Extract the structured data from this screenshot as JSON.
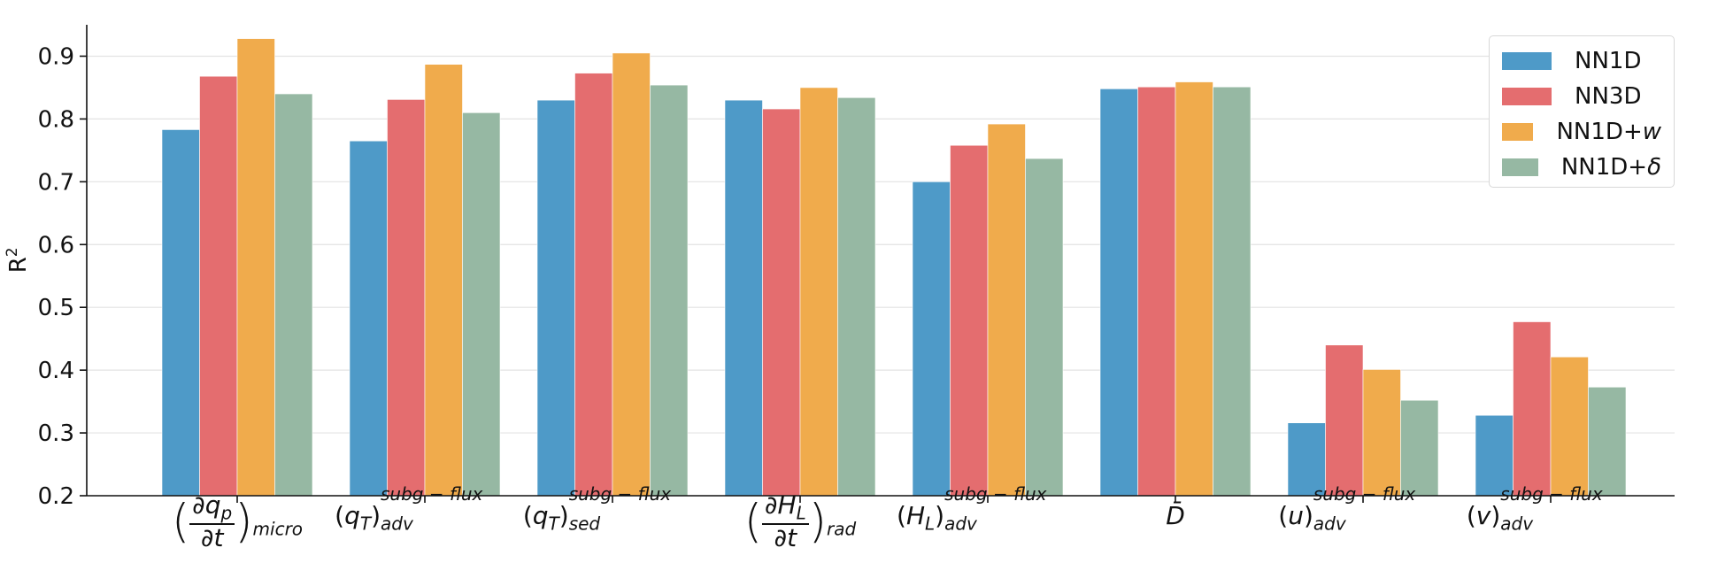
{
  "chart_data": {
    "type": "bar",
    "ylabel": "R",
    "ylabel_sup": "2",
    "ylim": [
      0.2,
      0.95
    ],
    "yticks": [
      "0.2",
      "0.3",
      "0.4",
      "0.5",
      "0.6",
      "0.7",
      "0.8",
      "0.9"
    ],
    "grid": "horizontal",
    "legend_position": "top-right",
    "categories": [
      "(∂q_p/∂t)_micro",
      "(q_T)_adv^(subg−flux)",
      "(q_T)_sed^(subg−flux)",
      "(∂H_L/∂t)_rad",
      "(H_L)_adv^(subg−flux)",
      "D̄",
      "(u)_adv^(subg−flux)",
      "(v)_adv^(subg−flux)"
    ],
    "series": [
      {
        "name": "NN1D",
        "color": "#4e9ac8",
        "values": [
          0.783,
          0.765,
          0.83,
          0.83,
          0.7,
          0.848,
          0.316,
          0.328
        ]
      },
      {
        "name": "NN3D",
        "color": "#e46d6f",
        "values": [
          0.868,
          0.831,
          0.873,
          0.816,
          0.758,
          0.851,
          0.44,
          0.477
        ]
      },
      {
        "name": "NN1D+w",
        "color": "#f0ab4c",
        "values": [
          0.928,
          0.887,
          0.905,
          0.85,
          0.792,
          0.859,
          0.401,
          0.421
        ]
      },
      {
        "name": "NN1D+δ",
        "color": "#96b8a3",
        "values": [
          0.84,
          0.81,
          0.854,
          0.834,
          0.737,
          0.851,
          0.352,
          0.373
        ]
      }
    ]
  },
  "labels": {
    "c0": {
      "d": "∂",
      "q": "q",
      "p": "p",
      "den": "∂t",
      "sub": "micro"
    },
    "c1": {
      "v": "q",
      "vs": "T",
      "sup": "subg − flux",
      "sub": "adv"
    },
    "c2": {
      "v": "q",
      "vs": "T",
      "sup": "subg − flux",
      "sub": "sed"
    },
    "c3": {
      "d": "∂",
      "h": "H",
      "hs": "L",
      "den": "∂t",
      "sub": "rad"
    },
    "c4": {
      "v": "H",
      "vs": "L",
      "sup": "subg − flux",
      "sub": "adv"
    },
    "c5": {
      "v": "D̄"
    },
    "c6": {
      "v": "u",
      "sup": "subg − flux",
      "sub": "adv"
    },
    "c7": {
      "v": "v",
      "sup": "subg − flux",
      "sub": "adv"
    }
  },
  "legend": {
    "nn1d": "NN1D",
    "nn3d": "NN3D",
    "nn1dw_base": "NN1D+",
    "nn1dw_it": "w",
    "nn1dd_base": "NN1D+",
    "nn1dd_it": "δ"
  }
}
